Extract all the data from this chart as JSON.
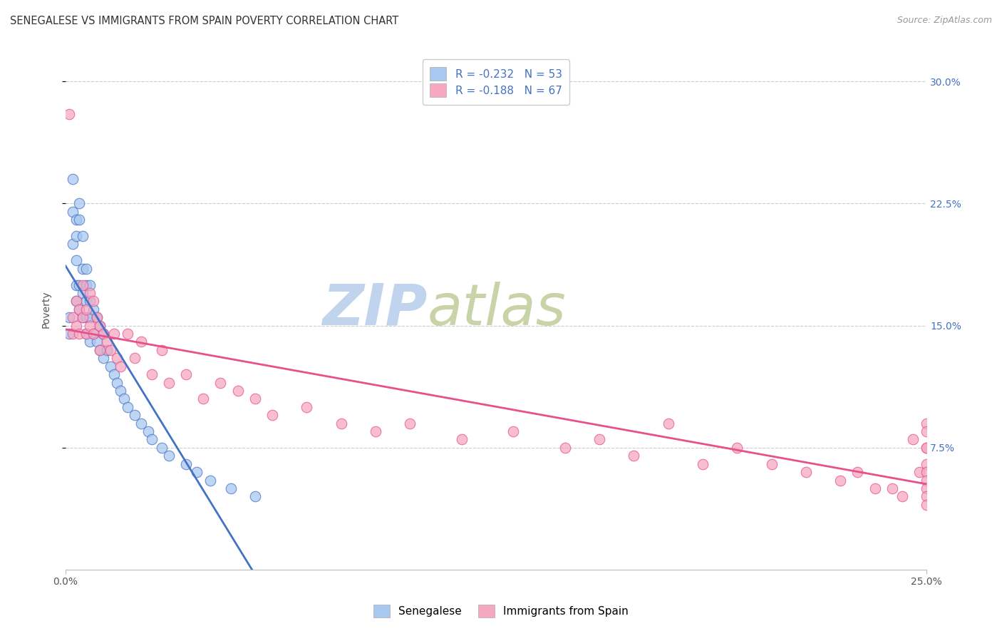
{
  "title": "SENEGALESE VS IMMIGRANTS FROM SPAIN POVERTY CORRELATION CHART",
  "source": "Source: ZipAtlas.com",
  "ylabel": "Poverty",
  "ytick_labels": [
    "30.0%",
    "22.5%",
    "15.0%",
    "7.5%"
  ],
  "ytick_values": [
    0.3,
    0.225,
    0.15,
    0.075
  ],
  "xlim": [
    0.0,
    0.25
  ],
  "ylim": [
    0.0,
    0.32
  ],
  "legend_label1": "R = -0.232   N = 53",
  "legend_label2": "R = -0.188   N = 67",
  "series1_label": "Senegalese",
  "series2_label": "Immigrants from Spain",
  "color1": "#A8C8F0",
  "color2": "#F5A8C0",
  "line_color1": "#4472C4",
  "line_color2": "#E8508C",
  "watermark_zip": "ZIP",
  "watermark_atlas": "atlas",
  "watermark_color_zip": "#C8D8F0",
  "watermark_color_atlas": "#C8D8A8",
  "background_color": "#FFFFFF",
  "senegalese_x": [
    0.001,
    0.001,
    0.002,
    0.002,
    0.002,
    0.003,
    0.003,
    0.003,
    0.003,
    0.003,
    0.004,
    0.004,
    0.004,
    0.004,
    0.005,
    0.005,
    0.005,
    0.005,
    0.006,
    0.006,
    0.006,
    0.006,
    0.006,
    0.007,
    0.007,
    0.007,
    0.007,
    0.008,
    0.008,
    0.009,
    0.009,
    0.01,
    0.01,
    0.011,
    0.011,
    0.012,
    0.013,
    0.014,
    0.015,
    0.016,
    0.017,
    0.018,
    0.02,
    0.022,
    0.024,
    0.025,
    0.028,
    0.03,
    0.035,
    0.038,
    0.042,
    0.048,
    0.055
  ],
  "senegalese_y": [
    0.155,
    0.145,
    0.24,
    0.22,
    0.2,
    0.215,
    0.205,
    0.19,
    0.175,
    0.165,
    0.225,
    0.215,
    0.175,
    0.16,
    0.205,
    0.185,
    0.17,
    0.155,
    0.185,
    0.175,
    0.165,
    0.155,
    0.145,
    0.175,
    0.165,
    0.155,
    0.14,
    0.16,
    0.145,
    0.155,
    0.14,
    0.15,
    0.135,
    0.145,
    0.13,
    0.135,
    0.125,
    0.12,
    0.115,
    0.11,
    0.105,
    0.1,
    0.095,
    0.09,
    0.085,
    0.08,
    0.075,
    0.07,
    0.065,
    0.06,
    0.055,
    0.05,
    0.045
  ],
  "spain_x": [
    0.001,
    0.002,
    0.002,
    0.003,
    0.003,
    0.004,
    0.004,
    0.005,
    0.005,
    0.006,
    0.006,
    0.007,
    0.007,
    0.008,
    0.008,
    0.009,
    0.01,
    0.01,
    0.011,
    0.012,
    0.013,
    0.014,
    0.015,
    0.016,
    0.018,
    0.02,
    0.022,
    0.025,
    0.028,
    0.03,
    0.035,
    0.04,
    0.045,
    0.05,
    0.055,
    0.06,
    0.07,
    0.08,
    0.09,
    0.1,
    0.115,
    0.13,
    0.145,
    0.155,
    0.165,
    0.175,
    0.185,
    0.195,
    0.205,
    0.215,
    0.225,
    0.23,
    0.235,
    0.24,
    0.243,
    0.246,
    0.248,
    0.25,
    0.25,
    0.25,
    0.25,
    0.25,
    0.25,
    0.25,
    0.25,
    0.25,
    0.25
  ],
  "spain_y": [
    0.28,
    0.155,
    0.145,
    0.165,
    0.15,
    0.16,
    0.145,
    0.175,
    0.155,
    0.16,
    0.145,
    0.17,
    0.15,
    0.165,
    0.145,
    0.155,
    0.15,
    0.135,
    0.145,
    0.14,
    0.135,
    0.145,
    0.13,
    0.125,
    0.145,
    0.13,
    0.14,
    0.12,
    0.135,
    0.115,
    0.12,
    0.105,
    0.115,
    0.11,
    0.105,
    0.095,
    0.1,
    0.09,
    0.085,
    0.09,
    0.08,
    0.085,
    0.075,
    0.08,
    0.07,
    0.09,
    0.065,
    0.075,
    0.065,
    0.06,
    0.055,
    0.06,
    0.05,
    0.05,
    0.045,
    0.08,
    0.06,
    0.09,
    0.085,
    0.075,
    0.065,
    0.06,
    0.055,
    0.05,
    0.045,
    0.04,
    0.075
  ],
  "title_fontsize": 10.5,
  "axis_label_fontsize": 10,
  "tick_fontsize": 10,
  "source_fontsize": 9
}
